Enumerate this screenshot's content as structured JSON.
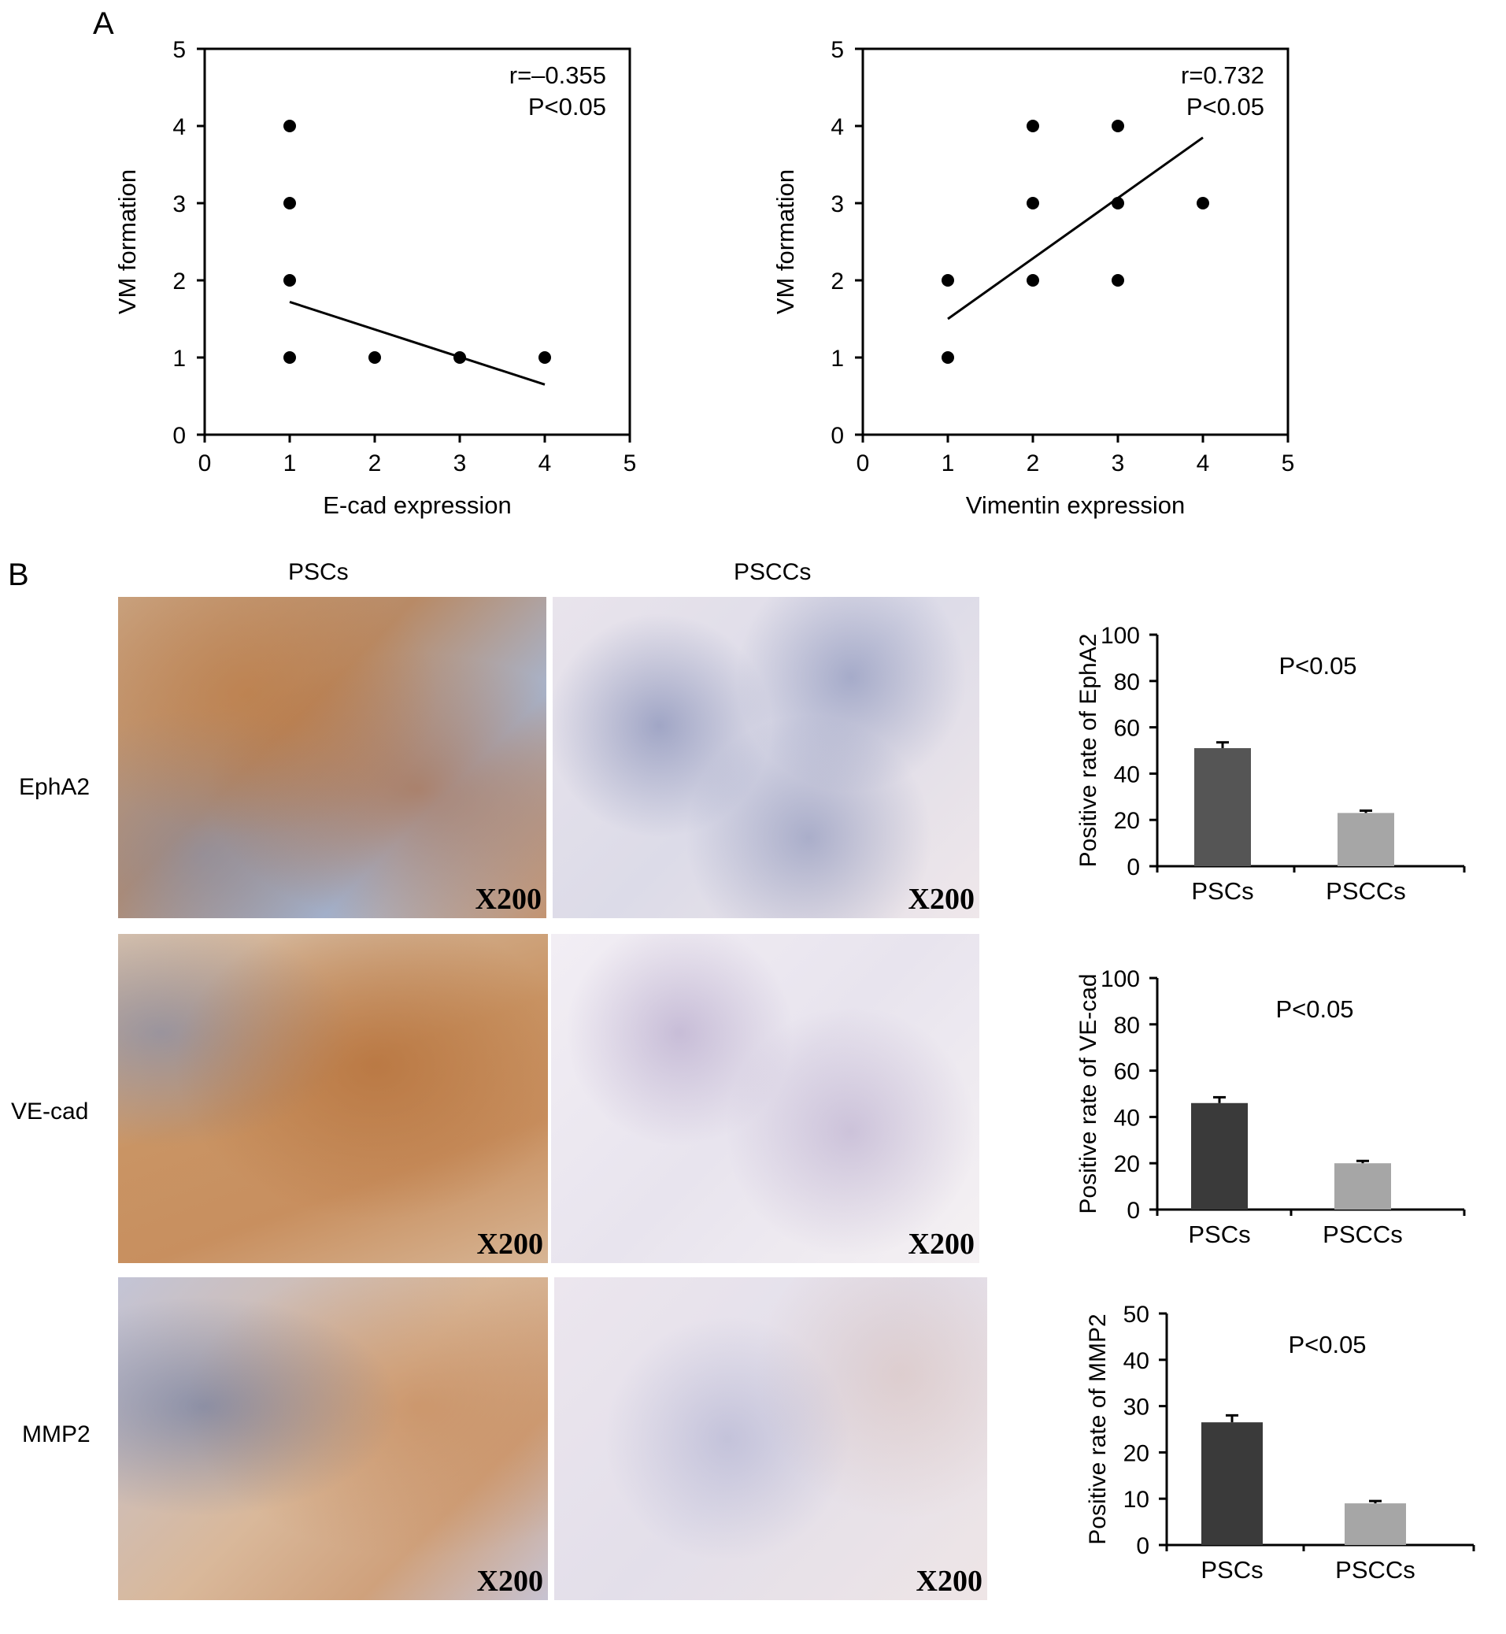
{
  "panels": {
    "a": {
      "letter": "A"
    },
    "b": {
      "letter": "B",
      "columns": [
        "PSCs",
        "PSCCs"
      ],
      "rows": [
        "EphA2",
        "VE-cad",
        "MMP2"
      ],
      "magnification": "X200",
      "tissue_colors": {
        "stain_brown": "#b8733f",
        "nuclei_blue": "#3a4f8f",
        "background": "#f4eef0"
      }
    }
  },
  "chart_data": [
    {
      "type": "scatter",
      "xlabel": "E-cad expression",
      "ylabel": "VM formation",
      "xlim": [
        0,
        5
      ],
      "ylim": [
        0,
        5
      ],
      "xticks": [
        "0",
        "1",
        "2",
        "3",
        "4",
        "5"
      ],
      "yticks": [
        "0",
        "1",
        "2",
        "3",
        "4",
        "5"
      ],
      "points": [
        [
          1,
          4
        ],
        [
          1,
          3
        ],
        [
          1,
          2
        ],
        [
          1,
          1
        ],
        [
          2,
          1
        ],
        [
          3,
          1
        ],
        [
          4,
          1
        ]
      ],
      "fit_line": [
        [
          1,
          1.72
        ],
        [
          4,
          0.65
        ]
      ],
      "annotation": [
        "r=–0.355",
        "P<0.05"
      ]
    },
    {
      "type": "scatter",
      "xlabel": "Vimentin expression",
      "ylabel": "VM formation",
      "xlim": [
        0,
        5
      ],
      "ylim": [
        0,
        5
      ],
      "xticks": [
        "0",
        "1",
        "2",
        "3",
        "4",
        "5"
      ],
      "yticks": [
        "0",
        "1",
        "2",
        "3",
        "4",
        "5"
      ],
      "points": [
        [
          1,
          2
        ],
        [
          1,
          1
        ],
        [
          2,
          4
        ],
        [
          2,
          3
        ],
        [
          2,
          2
        ],
        [
          3,
          4
        ],
        [
          3,
          3
        ],
        [
          3,
          2
        ],
        [
          4,
          3
        ]
      ],
      "fit_line": [
        [
          1,
          1.5
        ],
        [
          4,
          3.85
        ]
      ],
      "annotation": [
        "r=0.732",
        "P<0.05"
      ]
    },
    {
      "type": "bar",
      "categories": [
        "PSCs",
        "PSCCs"
      ],
      "values": [
        51,
        23
      ],
      "errors": [
        2.5,
        1
      ],
      "colors": [
        "#555555",
        "#a6a6a6"
      ],
      "ylabel": "Positive rate of EphA2",
      "ylim": [
        0,
        100
      ],
      "yticks": [
        "0",
        "20",
        "40",
        "60",
        "80",
        "100"
      ],
      "annotation": "P<0.05"
    },
    {
      "type": "bar",
      "categories": [
        "PSCs",
        "PSCCs"
      ],
      "values": [
        46,
        20
      ],
      "errors": [
        2.5,
        1
      ],
      "colors": [
        "#3a3a3a",
        "#a6a6a6"
      ],
      "ylabel": "Positive rate of VE-cad",
      "ylim": [
        0,
        100
      ],
      "yticks": [
        "0",
        "20",
        "40",
        "60",
        "80",
        "100"
      ],
      "annotation": "P<0.05"
    },
    {
      "type": "bar",
      "categories": [
        "PSCs",
        "PSCCs"
      ],
      "values": [
        26.5,
        9
      ],
      "errors": [
        1.5,
        0.5
      ],
      "colors": [
        "#3a3a3a",
        "#a6a6a6"
      ],
      "ylabel": "Positive rate of MMP2",
      "ylim": [
        0,
        50
      ],
      "yticks": [
        "0",
        "10",
        "20",
        "30",
        "40",
        "50"
      ],
      "annotation": "P<0.05"
    }
  ]
}
